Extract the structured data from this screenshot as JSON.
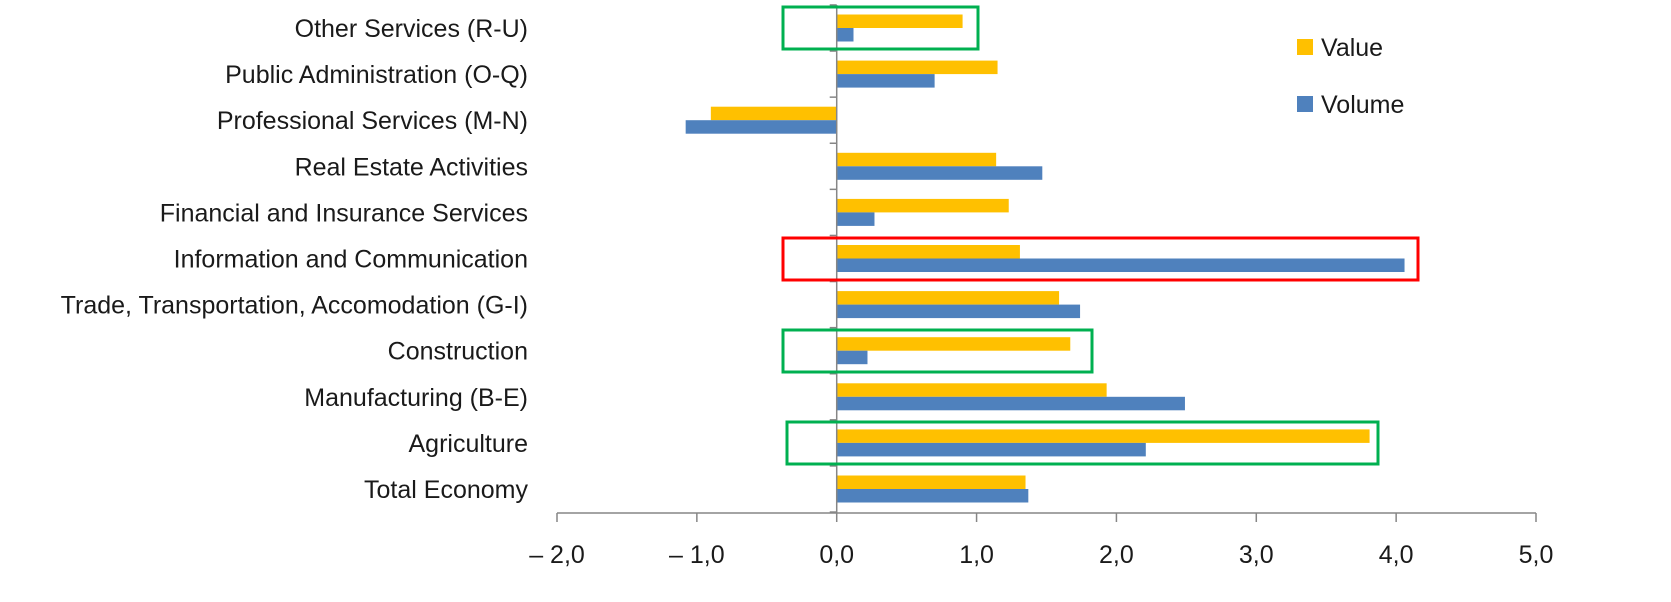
{
  "chart_data": {
    "type": "bar",
    "orientation": "horizontal",
    "categories": [
      "Other Services (R-U)",
      "Public Administration (O-Q)",
      "Professional Services (M-N)",
      "Real Estate Activities",
      "Financial and Insurance Services",
      "Information and Communication",
      "Trade, Transportation, Accomodation (G-I)",
      "Construction",
      "Manufacturing (B-E)",
      "Agriculture",
      "Total Economy"
    ],
    "series": [
      {
        "name": "Value",
        "color": "#FFC000",
        "values": [
          0.9,
          1.15,
          -0.9,
          1.14,
          1.23,
          1.31,
          1.59,
          1.67,
          1.93,
          3.81,
          1.35
        ]
      },
      {
        "name": "Volume",
        "color": "#4F81BD",
        "values": [
          0.12,
          0.7,
          -1.08,
          1.47,
          0.27,
          4.06,
          1.74,
          0.22,
          2.49,
          2.21,
          1.37
        ]
      }
    ],
    "xlim": [
      -2.0,
      5.0
    ],
    "xticks": [
      -2.0,
      -1.0,
      0.0,
      1.0,
      2.0,
      3.0,
      4.0,
      5.0
    ],
    "xtick_labels": [
      "– 2,0",
      "– 1,0",
      "0,0",
      "1,0",
      "2,0",
      "3,0",
      "4,0",
      "5,0"
    ],
    "grid": false,
    "legend_position": "top-right",
    "highlights": [
      {
        "category": "Other Services (R-U)",
        "color": "#00B050"
      },
      {
        "category": "Information and Communication",
        "color": "#FF0000"
      },
      {
        "category": "Construction",
        "color": "#00B050"
      },
      {
        "category": "Agriculture",
        "color": "#00B050"
      }
    ],
    "title": "",
    "xlabel": "",
    "ylabel": ""
  }
}
